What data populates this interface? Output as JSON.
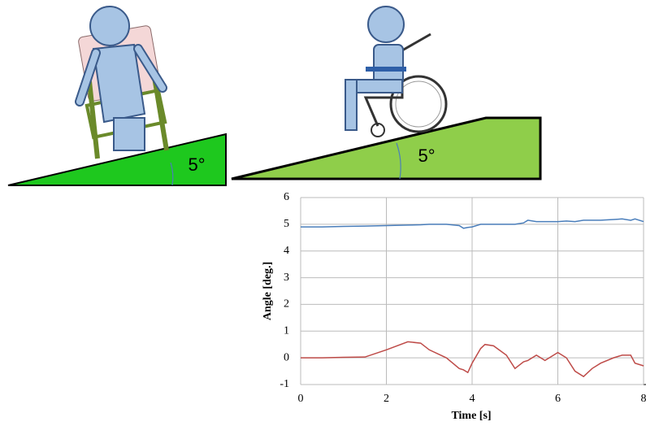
{
  "chart_data": {
    "type": "line",
    "xlabel": "Time [s]",
    "ylabel": "Angle [deg.]",
    "annotations": [
      "5°",
      "5°"
    ],
    "x": [
      0,
      0.5,
      1,
      1.5,
      2,
      2.5,
      2.8,
      3,
      3.4,
      3.7,
      3.8,
      3.9,
      4,
      4.2,
      4.3,
      4.5,
      4.8,
      5,
      5.2,
      5.3,
      5.5,
      5.7,
      6,
      6.2,
      6.4,
      6.6,
      6.8,
      7,
      7.3,
      7.5,
      7.7,
      7.8,
      8
    ],
    "series": [
      {
        "color": "#4a7ebb",
        "values": [
          4.9,
          4.9,
          4.92,
          4.93,
          4.95,
          4.97,
          4.98,
          5.0,
          5.0,
          4.95,
          4.85,
          4.88,
          4.9,
          5.0,
          5.0,
          5.0,
          5.0,
          5.0,
          5.05,
          5.15,
          5.1,
          5.1,
          5.1,
          5.12,
          5.1,
          5.15,
          5.15,
          5.15,
          5.18,
          5.2,
          5.15,
          5.2,
          5.1
        ]
      },
      {
        "color": "#be4b48",
        "values": [
          0,
          0,
          0.02,
          0.03,
          0.3,
          0.6,
          0.55,
          0.3,
          0,
          -0.4,
          -0.45,
          -0.55,
          -0.2,
          0.35,
          0.5,
          0.45,
          0.1,
          -0.4,
          -0.15,
          -0.1,
          0.1,
          -0.1,
          0.2,
          0,
          -0.5,
          -0.7,
          -0.4,
          -0.2,
          0,
          0.1,
          0.1,
          -0.2,
          -0.3
        ]
      }
    ],
    "xlim": [
      0,
      8
    ],
    "xticks": [
      0,
      2,
      4,
      6,
      8
    ],
    "ylim": [
      -1,
      6
    ],
    "yticks": [
      -1,
      0,
      1,
      2,
      3,
      4,
      5,
      6
    ],
    "grid": true
  }
}
